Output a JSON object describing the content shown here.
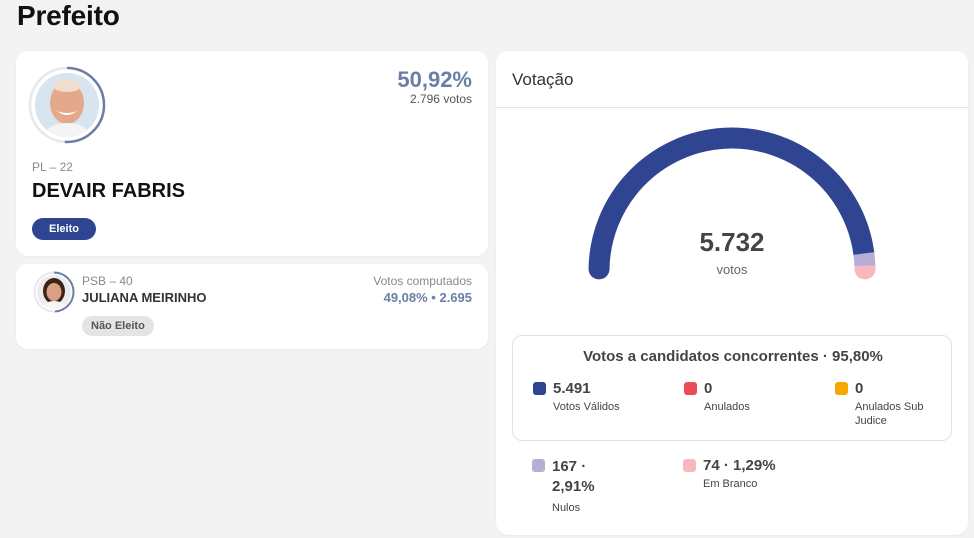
{
  "page": {
    "title": "Prefeito"
  },
  "winner": {
    "pct": "50,92%",
    "votes": "2.796 votos",
    "party": "PL – 22",
    "name": "DEVAIR FABRIS",
    "status": "Eleito",
    "share": 0.5092
  },
  "second": {
    "party": "PSB – 40",
    "name": "JULIANA MEIRINHO",
    "label": "Votos computados",
    "value": "49,08%  •  2.695",
    "status": "Não Eleito",
    "share": 0.4908
  },
  "votacao": {
    "title": "Votação",
    "total": "5.732",
    "total_label": "votos",
    "competitors_title": "Votos a candidatos concorrentes · 95,80%",
    "gauge_shares": {
      "validos": 0.958,
      "nulos": 0.0291,
      "branco": 0.0129
    },
    "legend": {
      "validos": {
        "value": "5.491",
        "label": "Votos Válidos",
        "color": "#2f4591"
      },
      "anulados": {
        "value": "0",
        "label": "Anulados",
        "color": "#ef4a5a"
      },
      "anulados_sub": {
        "value": "0",
        "label": "Anulados Sub Judice",
        "color": "#f5a800"
      },
      "nulos": {
        "value": "167 · 2,91%",
        "label": "Nulos",
        "color": "#b7aed6"
      },
      "branco": {
        "value": "74 · 1,29%",
        "label": "Em Branco",
        "color": "#f7b8bf"
      }
    }
  },
  "colors": {
    "accent": "#2f4591",
    "muted_blue": "#6b7ea8"
  }
}
